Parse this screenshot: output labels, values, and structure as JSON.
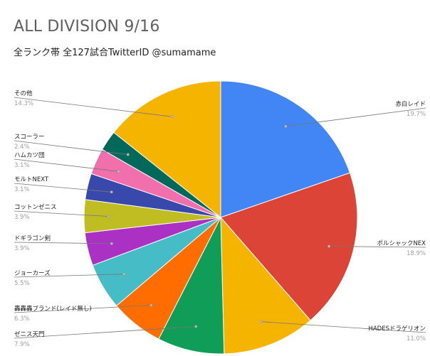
{
  "chart_data": {
    "type": "pie",
    "title": "ALL DIVISION 9/16",
    "subtitle": "全ランク帯 全127試合TwitterID @sumamame",
    "slices": [
      {
        "label": "赤白レイド",
        "value": 19.7,
        "pct": "19.7%",
        "color": "#4285f4"
      },
      {
        "label": "ポルシャックNEX",
        "value": 18.9,
        "pct": "18.9%",
        "color": "#db4437"
      },
      {
        "label": "HADESドラゲリオン",
        "value": 11.0,
        "pct": "11.0%",
        "color": "#f4b400"
      },
      {
        "label": "ゼニス天門",
        "value": 7.9,
        "pct": "7.9%",
        "color": "#0f9d58"
      },
      {
        "label": "轟轟轟ブランド(レイド無し)",
        "value": 6.3,
        "pct": "6.3%",
        "color": "#ff6d00"
      },
      {
        "label": "ジョーカーズ",
        "value": 5.5,
        "pct": "5.5%",
        "color": "#46bdc6"
      },
      {
        "label": "ドギラゴン剣",
        "value": 3.9,
        "pct": "3.9%",
        "color": "#ab30c4"
      },
      {
        "label": "コットンゼニス",
        "value": 3.9,
        "pct": "3.9%",
        "color": "#c0bd22"
      },
      {
        "label": "モルトNEXT",
        "value": 3.1,
        "pct": "3.1%",
        "color": "#3949ab"
      },
      {
        "label": "ハムカツ団",
        "value": 3.1,
        "pct": "3.1%",
        "color": "#f06fac"
      },
      {
        "label": "スコーラー",
        "value": 2.4,
        "pct": "2.4%",
        "color": "#00695c"
      },
      {
        "label": "その他",
        "value": 14.3,
        "pct": "14.3%",
        "color": "#f4b400"
      }
    ],
    "legend": "none",
    "labels": "outside-with-leader-lines"
  }
}
